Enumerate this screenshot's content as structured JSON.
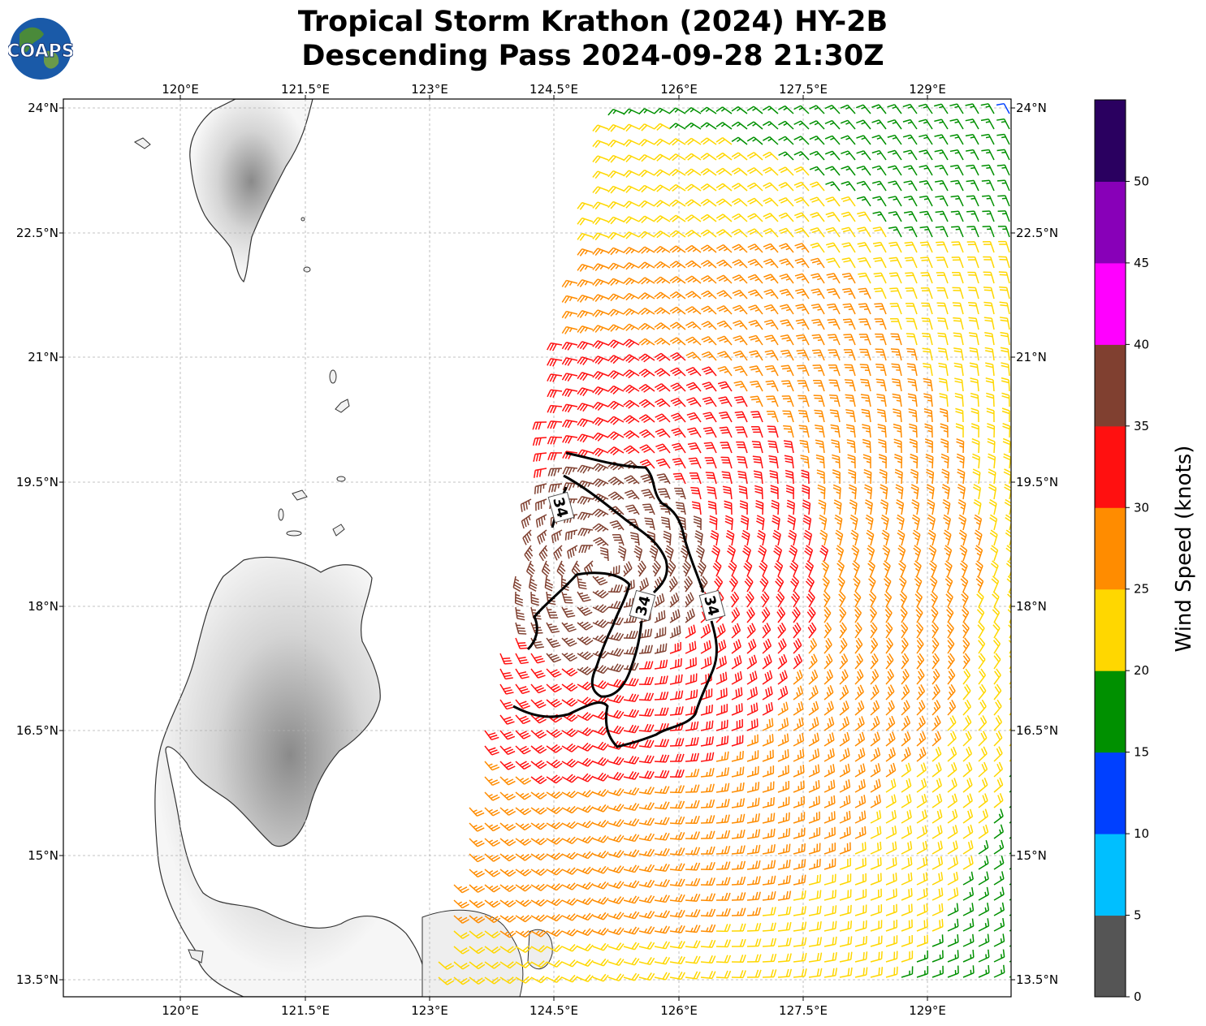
{
  "title_line1": "Tropical Storm Krathon (2024) HY-2B",
  "title_line2": "Descending Pass 2024-09-28 21:30Z",
  "logo_text": "COAPS",
  "lon_ticks": [
    "120°E",
    "121.5°E",
    "123°E",
    "124.5°E",
    "126°E",
    "127.5°E",
    "129°E"
  ],
  "lat_ticks": [
    "24°N",
    "22.5°N",
    "21°N",
    "19.5°N",
    "18°N",
    "16.5°N",
    "15°N",
    "13.5°N"
  ],
  "contour_label": "34",
  "colorbar": {
    "label": "Wind Speed (knots)",
    "ticks": [
      "0",
      "5",
      "10",
      "15",
      "20",
      "25",
      "30",
      "35",
      "40",
      "45",
      "50"
    ],
    "colors": [
      "#555555",
      "#00bfff",
      "#0040ff",
      "#009000",
      "#ffd700",
      "#ff8c00",
      "#ff1010",
      "#804030",
      "#ff00ff",
      "#8800b8",
      "#2a0060"
    ]
  },
  "map_extent": {
    "lon_min": 118.6,
    "lon_max": 130.0,
    "lat_min": 13.3,
    "lat_max": 24.1
  },
  "storm_center": {
    "lon": 125.05,
    "lat": 18.5
  }
}
